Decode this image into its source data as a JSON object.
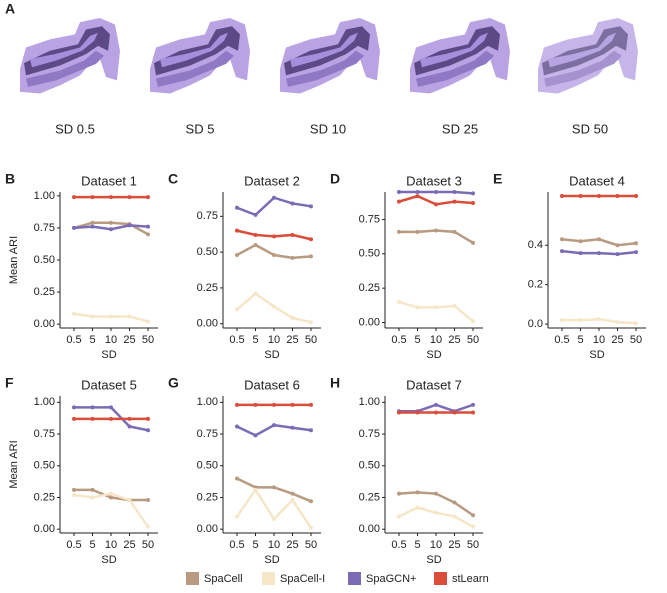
{
  "panel_a": {
    "panel": "A",
    "captions": [
      "SD 0.5",
      "SD 5",
      "SD 10",
      "SD 25",
      "SD 50"
    ]
  },
  "chart_data": [
    {
      "type": "line",
      "panel": "B",
      "title": "Dataset 1",
      "xlabel": "SD",
      "ylabel": "Mean ARI",
      "categories": [
        "0.5",
        "5",
        "10",
        "25",
        "50"
      ],
      "ylim": [
        -0.03,
        1.03
      ],
      "yticks": [
        {
          "value": 0,
          "label": "0.00"
        },
        {
          "value": 0.25,
          "label": "0.25"
        },
        {
          "value": 0.5,
          "label": "0.50"
        },
        {
          "value": 0.75,
          "label": "0.75"
        },
        {
          "value": 1,
          "label": "1.00"
        }
      ],
      "series": [
        {
          "name": "SpaCell",
          "color": "#b89a80",
          "values": [
            0.75,
            0.79,
            0.79,
            0.78,
            0.7
          ]
        },
        {
          "name": "SpaCell-I",
          "color": "#f5e6c8",
          "values": [
            0.08,
            0.06,
            0.06,
            0.06,
            0.02
          ]
        },
        {
          "name": "SpaGCN+",
          "color": "#7b6bb5",
          "values": [
            0.75,
            0.76,
            0.74,
            0.77,
            0.76
          ]
        },
        {
          "name": "stLearn",
          "color": "#d94d3a",
          "values": [
            0.99,
            0.99,
            0.99,
            0.99,
            0.99
          ]
        }
      ]
    },
    {
      "type": "line",
      "panel": "C",
      "title": "Dataset 2",
      "xlabel": "SD",
      "categories": [
        "0.5",
        "5",
        "10",
        "25",
        "50"
      ],
      "ylim": [
        -0.03,
        0.92
      ],
      "yticks": [
        {
          "value": 0,
          "label": "0.00"
        },
        {
          "value": 0.25,
          "label": "0.25"
        },
        {
          "value": 0.5,
          "label": "0.50"
        },
        {
          "value": 0.75,
          "label": "0.75"
        }
      ],
      "series": [
        {
          "name": "SpaCell",
          "color": "#b89a80",
          "values": [
            0.48,
            0.55,
            0.48,
            0.46,
            0.47
          ]
        },
        {
          "name": "SpaCell-I",
          "color": "#f5e6c8",
          "values": [
            0.1,
            0.21,
            0.12,
            0.04,
            0.01
          ]
        },
        {
          "name": "SpaGCN+",
          "color": "#7b6bb5",
          "values": [
            0.81,
            0.76,
            0.88,
            0.84,
            0.82
          ]
        },
        {
          "name": "stLearn",
          "color": "#d94d3a",
          "values": [
            0.65,
            0.62,
            0.61,
            0.62,
            0.59
          ]
        }
      ]
    },
    {
      "type": "line",
      "panel": "D",
      "title": "Dataset 3",
      "xlabel": "SD",
      "categories": [
        "0.5",
        "5",
        "10",
        "25",
        "50"
      ],
      "ylim": [
        -0.04,
        0.95
      ],
      "yticks": [
        {
          "value": 0,
          "label": "0.00"
        },
        {
          "value": 0.25,
          "label": "0.25"
        },
        {
          "value": 0.5,
          "label": "0.50"
        },
        {
          "value": 0.75,
          "label": "0.75"
        }
      ],
      "series": [
        {
          "name": "SpaCell",
          "color": "#b89a80",
          "values": [
            0.66,
            0.66,
            0.67,
            0.66,
            0.58
          ]
        },
        {
          "name": "SpaCell-I",
          "color": "#f5e6c8",
          "values": [
            0.15,
            0.11,
            0.11,
            0.12,
            0.01
          ]
        },
        {
          "name": "SpaGCN+",
          "color": "#7b6bb5",
          "values": [
            0.95,
            0.95,
            0.95,
            0.95,
            0.94
          ]
        },
        {
          "name": "stLearn",
          "color": "#d94d3a",
          "values": [
            0.88,
            0.92,
            0.86,
            0.88,
            0.87
          ]
        }
      ]
    },
    {
      "type": "line",
      "panel": "E",
      "title": "Dataset 4",
      "xlabel": "SD",
      "categories": [
        "0.5",
        "5",
        "10",
        "25",
        "50"
      ],
      "ylim": [
        -0.02,
        0.67
      ],
      "yticks": [
        {
          "value": 0,
          "label": "0.0"
        },
        {
          "value": 0.2,
          "label": "0.2"
        },
        {
          "value": 0.4,
          "label": "0.4"
        }
      ],
      "series": [
        {
          "name": "SpaCell",
          "color": "#b89a80",
          "values": [
            0.43,
            0.42,
            0.43,
            0.4,
            0.41
          ]
        },
        {
          "name": "SpaCell-I",
          "color": "#f5e6c8",
          "values": [
            0.02,
            0.02,
            0.025,
            0.01,
            0.005
          ]
        },
        {
          "name": "SpaGCN+",
          "color": "#7b6bb5",
          "values": [
            0.37,
            0.36,
            0.36,
            0.355,
            0.365
          ]
        },
        {
          "name": "stLearn",
          "color": "#d94d3a",
          "values": [
            0.65,
            0.65,
            0.65,
            0.65,
            0.65
          ]
        }
      ]
    },
    {
      "type": "line",
      "panel": "F",
      "title": "Dataset 5",
      "xlabel": "SD",
      "ylabel": "Mean ARI",
      "categories": [
        "0.5",
        "5",
        "10",
        "25",
        "50"
      ],
      "ylim": [
        -0.03,
        1.05
      ],
      "yticks": [
        {
          "value": 0,
          "label": "0.00"
        },
        {
          "value": 0.25,
          "label": "0.25"
        },
        {
          "value": 0.5,
          "label": "0.50"
        },
        {
          "value": 0.75,
          "label": "0.75"
        },
        {
          "value": 1,
          "label": "1.00"
        }
      ],
      "series": [
        {
          "name": "SpaCell",
          "color": "#b89a80",
          "values": [
            0.31,
            0.31,
            0.25,
            0.23,
            0.23
          ]
        },
        {
          "name": "SpaCell-I",
          "color": "#f5e6c8",
          "values": [
            0.27,
            0.25,
            0.28,
            0.23,
            0.02
          ]
        },
        {
          "name": "SpaGCN+",
          "color": "#7b6bb5",
          "values": [
            0.96,
            0.96,
            0.96,
            0.81,
            0.78
          ]
        },
        {
          "name": "stLearn",
          "color": "#d94d3a",
          "values": [
            0.87,
            0.87,
            0.87,
            0.87,
            0.87
          ]
        }
      ]
    },
    {
      "type": "line",
      "panel": "G",
      "title": "Dataset 6",
      "xlabel": "SD",
      "categories": [
        "0.5",
        "5",
        "10",
        "25",
        "50"
      ],
      "ylim": [
        -0.03,
        1.05
      ],
      "yticks": [
        {
          "value": 0,
          "label": "0.00"
        },
        {
          "value": 0.25,
          "label": "0.25"
        },
        {
          "value": 0.5,
          "label": "0.50"
        },
        {
          "value": 0.75,
          "label": "0.75"
        },
        {
          "value": 1,
          "label": "1.00"
        }
      ],
      "series": [
        {
          "name": "SpaCell",
          "color": "#b89a80",
          "values": [
            0.4,
            0.33,
            0.33,
            0.28,
            0.22
          ]
        },
        {
          "name": "SpaCell-I",
          "color": "#f5e6c8",
          "values": [
            0.1,
            0.31,
            0.08,
            0.23,
            0.01
          ]
        },
        {
          "name": "SpaGCN+",
          "color": "#7b6bb5",
          "values": [
            0.81,
            0.74,
            0.82,
            0.8,
            0.78
          ]
        },
        {
          "name": "stLearn",
          "color": "#d94d3a",
          "values": [
            0.98,
            0.98,
            0.98,
            0.98,
            0.98
          ]
        }
      ]
    },
    {
      "type": "line",
      "panel": "H",
      "title": "Dataset 7",
      "xlabel": "SD",
      "categories": [
        "0.5",
        "5",
        "10",
        "25",
        "50"
      ],
      "ylim": [
        -0.03,
        1.05
      ],
      "yticks": [
        {
          "value": 0,
          "label": "0.00"
        },
        {
          "value": 0.25,
          "label": "0.25"
        },
        {
          "value": 0.5,
          "label": "0.50"
        },
        {
          "value": 0.75,
          "label": "0.75"
        },
        {
          "value": 1,
          "label": "1.00"
        }
      ],
      "series": [
        {
          "name": "SpaCell",
          "color": "#b89a80",
          "values": [
            0.28,
            0.29,
            0.28,
            0.21,
            0.11
          ]
        },
        {
          "name": "SpaCell-I",
          "color": "#f5e6c8",
          "values": [
            0.1,
            0.17,
            0.13,
            0.1,
            0.02
          ]
        },
        {
          "name": "SpaGCN+",
          "color": "#7b6bb5",
          "values": [
            0.93,
            0.93,
            0.98,
            0.93,
            0.98
          ]
        },
        {
          "name": "stLearn",
          "color": "#d94d3a",
          "values": [
            0.92,
            0.92,
            0.92,
            0.92,
            0.92
          ]
        }
      ]
    }
  ]
}
